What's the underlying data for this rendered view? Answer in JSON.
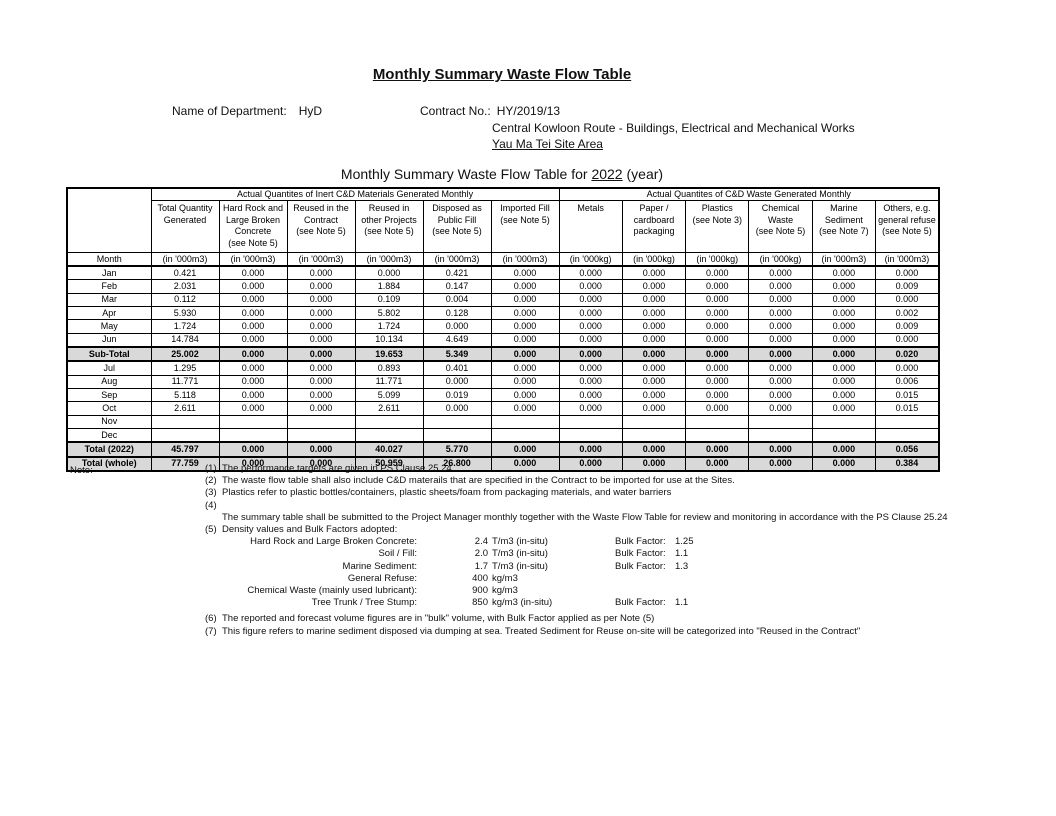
{
  "page": {
    "title": "Monthly Summary Waste Flow Table",
    "department_label": "Name of Department:",
    "department_value": "HyD",
    "contract_label": "Contract No.:",
    "contract_value": "HY/2019/13",
    "contract_desc": "Central Kowloon Route - Buildings, Electrical and Mechanical Works",
    "site_area": "Yau Ma Tei Site Area",
    "subtitle_prefix": "Monthly Summary Waste Flow Table for ",
    "subtitle_year": "2022",
    "subtitle_suffix": " (year)"
  },
  "table": {
    "group_headers": [
      "Actual Quantites of Inert C&D Materials Generated Monthly",
      "Actual Quantites of C&D Waste Generated Monthly"
    ],
    "month_header": "Month",
    "columns": [
      {
        "label": "Total Quantity\nGenerated",
        "unit": "(in '000m3)"
      },
      {
        "label": "Hard Rock and\nLarge Broken\nConcrete\n(see Note 5)",
        "unit": "(in '000m3)"
      },
      {
        "label": "Reused in the\nContract\n(see Note 5)",
        "unit": "(in '000m3)"
      },
      {
        "label": "Reused in\nother Projects\n(see Note 5)",
        "unit": "(in '000m3)"
      },
      {
        "label": "Disposed as\nPublic Fill\n(see Note 5)",
        "unit": "(in '000m3)"
      },
      {
        "label": "Imported Fill\n(see Note 5)",
        "unit": "(in '000m3)"
      },
      {
        "label": "Metals",
        "unit": "(in '000kg)"
      },
      {
        "label": "Paper /\ncardboard\npackaging",
        "unit": "(in '000kg)"
      },
      {
        "label": "Plastics\n(see Note 3)",
        "unit": "(in '000kg)"
      },
      {
        "label": "Chemical\nWaste\n(see Note 5)",
        "unit": "(in '000kg)"
      },
      {
        "label": "Marine\nSediment\n(see Note 7)",
        "unit": "(in '000m3)"
      },
      {
        "label": "Others, e.g.\ngeneral refuse\n(see Note 5)",
        "unit": "(in '000m3)"
      }
    ],
    "rows": [
      {
        "label": "Jan",
        "emph": false,
        "values": [
          "0.421",
          "0.000",
          "0.000",
          "0.000",
          "0.421",
          "0.000",
          "0.000",
          "0.000",
          "0.000",
          "0.000",
          "0.000",
          "0.000"
        ]
      },
      {
        "label": "Feb",
        "emph": false,
        "values": [
          "2.031",
          "0.000",
          "0.000",
          "1.884",
          "0.147",
          "0.000",
          "0.000",
          "0.000",
          "0.000",
          "0.000",
          "0.000",
          "0.009"
        ]
      },
      {
        "label": "Mar",
        "emph": false,
        "values": [
          "0.112",
          "0.000",
          "0.000",
          "0.109",
          "0.004",
          "0.000",
          "0.000",
          "0.000",
          "0.000",
          "0.000",
          "0.000",
          "0.000"
        ]
      },
      {
        "label": "Apr",
        "emph": false,
        "values": [
          "5.930",
          "0.000",
          "0.000",
          "5.802",
          "0.128",
          "0.000",
          "0.000",
          "0.000",
          "0.000",
          "0.000",
          "0.000",
          "0.002"
        ]
      },
      {
        "label": "May",
        "emph": false,
        "values": [
          "1.724",
          "0.000",
          "0.000",
          "1.724",
          "0.000",
          "0.000",
          "0.000",
          "0.000",
          "0.000",
          "0.000",
          "0.000",
          "0.009"
        ]
      },
      {
        "label": "Jun",
        "emph": false,
        "values": [
          "14.784",
          "0.000",
          "0.000",
          "10.134",
          "4.649",
          "0.000",
          "0.000",
          "0.000",
          "0.000",
          "0.000",
          "0.000",
          "0.000"
        ]
      },
      {
        "label": "Sub-Total",
        "emph": true,
        "values": [
          "25.002",
          "0.000",
          "0.000",
          "19.653",
          "5.349",
          "0.000",
          "0.000",
          "0.000",
          "0.000",
          "0.000",
          "0.000",
          "0.020"
        ]
      },
      {
        "label": "Jul",
        "emph": false,
        "values": [
          "1.295",
          "0.000",
          "0.000",
          "0.893",
          "0.401",
          "0.000",
          "0.000",
          "0.000",
          "0.000",
          "0.000",
          "0.000",
          "0.000"
        ]
      },
      {
        "label": "Aug",
        "emph": false,
        "values": [
          "11.771",
          "0.000",
          "0.000",
          "11.771",
          "0.000",
          "0.000",
          "0.000",
          "0.000",
          "0.000",
          "0.000",
          "0.000",
          "0.006"
        ]
      },
      {
        "label": "Sep",
        "emph": false,
        "values": [
          "5.118",
          "0.000",
          "0.000",
          "5.099",
          "0.019",
          "0.000",
          "0.000",
          "0.000",
          "0.000",
          "0.000",
          "0.000",
          "0.015"
        ]
      },
      {
        "label": "Oct",
        "emph": false,
        "values": [
          "2.611",
          "0.000",
          "0.000",
          "2.611",
          "0.000",
          "0.000",
          "0.000",
          "0.000",
          "0.000",
          "0.000",
          "0.000",
          "0.015"
        ]
      },
      {
        "label": "Nov",
        "emph": false,
        "values": [
          "",
          "",
          "",
          "",
          "",
          "",
          "",
          "",
          "",
          "",
          "",
          ""
        ]
      },
      {
        "label": "Dec",
        "emph": false,
        "values": [
          "",
          "",
          "",
          "",
          "",
          "",
          "",
          "",
          "",
          "",
          "",
          ""
        ]
      },
      {
        "label": "Total (2022)",
        "emph": true,
        "values": [
          "45.797",
          "0.000",
          "0.000",
          "40.027",
          "5.770",
          "0.000",
          "0.000",
          "0.000",
          "0.000",
          "0.000",
          "0.000",
          "0.056"
        ]
      },
      {
        "label": "Total (whole)",
        "emph": true,
        "values": [
          "77.759",
          "0.000",
          "0.000",
          "50.959",
          "26.800",
          "0.000",
          "0.000",
          "0.000",
          "0.000",
          "0.000",
          "0.000",
          "0.384"
        ]
      }
    ]
  },
  "notes": {
    "label": "Note:",
    "items": [
      {
        "no": "(1)",
        "text": "The performance targets are given in PS Clause 25.24"
      },
      {
        "no": "(2)",
        "text": "The waste flow table shall also include C&D materails that are specified in the Contract to be imported for use at the Sites."
      },
      {
        "no": "(3)",
        "text": "Plastics refer to plastic bottles/containers, plastic sheets/foam from packaging materials, and water barriers"
      },
      {
        "no": "(4)",
        "text": ""
      },
      {
        "no": "",
        "text": "The summary table shall be submitted to the Project Manager monthly together with the Waste Flow Table for review and monitoring in accordance with the PS Clause 25.24"
      },
      {
        "no": "(5)",
        "text": "Density values and Bulk Factors adopted:"
      }
    ],
    "density_rows": [
      {
        "label": "Hard Rock and Large Broken Concrete:",
        "value": "2.4",
        "unit": "T/m3 (in-situ)",
        "bf_label": "Bulk Factor:",
        "bf_value": "1.25"
      },
      {
        "label": "Soil / Fill:",
        "value": "2.0",
        "unit": "T/m3 (in-situ)",
        "bf_label": "Bulk Factor:",
        "bf_value": "1.1"
      },
      {
        "label": "Marine Sediment:",
        "value": "1.7",
        "unit": "T/m3 (in-situ)",
        "bf_label": "Bulk Factor:",
        "bf_value": "1.3"
      },
      {
        "label": "General Refuse:",
        "value": "400",
        "unit": "kg/m3",
        "bf_label": "",
        "bf_value": ""
      },
      {
        "label": "Chemical Waste (mainly used lubricant):",
        "value": "900",
        "unit": "kg/m3",
        "bf_label": "",
        "bf_value": ""
      },
      {
        "label": "Tree Trunk / Tree Stump:",
        "value": "850",
        "unit": "kg/m3 (in-situ)",
        "bf_label": "Bulk Factor:",
        "bf_value": "1.1"
      }
    ],
    "items_after": [
      {
        "no": "(6)",
        "text": "The reported and forecast volume figures are in \"bulk\" volume, with Bulk Factor applied as per Note (5)"
      },
      {
        "no": "(7)",
        "text": "This figure refers to marine sediment disposed via dumping at sea. Treated Sediment for Reuse on-site will be categorized into \"Reused in the Contract\""
      }
    ]
  }
}
